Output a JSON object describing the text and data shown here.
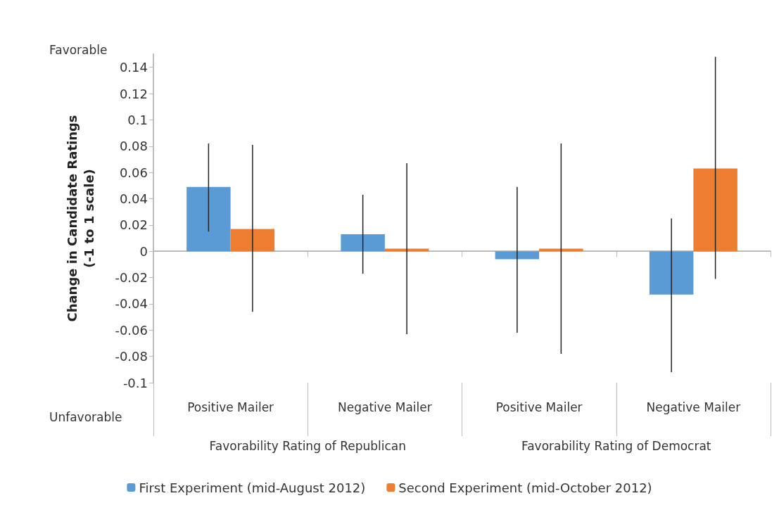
{
  "chart_data": {
    "type": "bar",
    "ylabel": "Change in Candidate Ratings\n(-1 to 1 scale)",
    "categories": [
      "Positive Mailer",
      "Negative Mailer",
      "Positive Mailer",
      "Negative Mailer"
    ],
    "series": [
      {
        "name": "First Experiment (mid-August 2012)",
        "color": "#5b9bd5",
        "values": [
          0.049,
          0.013,
          -0.006,
          -0.033
        ],
        "errors": [
          [
            0.015,
            0.082
          ],
          [
            -0.017,
            0.043
          ],
          [
            -0.062,
            0.049
          ],
          [
            -0.092,
            0.025
          ]
        ]
      },
      {
        "name": "Second Experiment (mid-October 2012)",
        "color": "#ed7d31",
        "values": [
          0.017,
          0.002,
          0.002,
          0.063
        ],
        "errors": [
          [
            -0.046,
            0.081
          ],
          [
            -0.063,
            0.067
          ],
          [
            -0.078,
            0.082
          ],
          [
            -0.021,
            0.148
          ]
        ]
      }
    ],
    "ylim": [
      -0.1,
      0.15
    ],
    "yticks": [
      -0.1,
      -0.08,
      -0.06,
      -0.04,
      -0.02,
      0,
      0.02,
      0.04,
      0.06,
      0.08,
      0.1,
      0.12,
      0.14
    ],
    "annotations": [
      "Favorable",
      "Unfavorable",
      "Favorability Rating of Republican",
      "Favorability Rating of Democrat"
    ],
    "legend": "bottom"
  }
}
